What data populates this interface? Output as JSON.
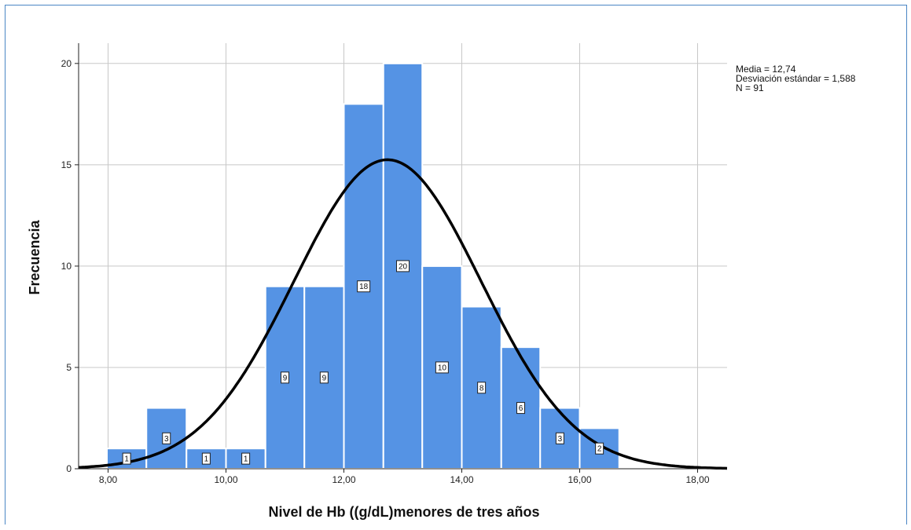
{
  "chart_data": {
    "type": "bar",
    "title": "",
    "xlabel": "Nivel de Hb ((g/dL)menores de  tres años",
    "ylabel": "Frecuencia",
    "xlim": [
      7.5,
      18.5
    ],
    "ylim": [
      0,
      21
    ],
    "x_ticks": [
      8,
      10,
      12,
      14,
      16,
      18
    ],
    "x_tick_labels": [
      "8,00",
      "10,00",
      "12,00",
      "14,00",
      "16,00",
      "18,00"
    ],
    "y_ticks": [
      0,
      5,
      10,
      15,
      20
    ],
    "y_tick_labels": [
      "0",
      "5",
      "10",
      "15",
      "20"
    ],
    "grid": true,
    "bar_color": "#5593e4",
    "bins": [
      {
        "x0": 7.98,
        "x1": 8.65,
        "value": 1,
        "label": "1"
      },
      {
        "x0": 8.65,
        "x1": 9.33,
        "value": 3,
        "label": "3"
      },
      {
        "x0": 9.33,
        "x1": 10.0,
        "value": 1,
        "label": "1"
      },
      {
        "x0": 10.0,
        "x1": 10.67,
        "value": 1,
        "label": "1"
      },
      {
        "x0": 10.67,
        "x1": 11.33,
        "value": 9,
        "label": "9"
      },
      {
        "x0": 11.33,
        "x1": 12.0,
        "value": 9,
        "label": "9"
      },
      {
        "x0": 12.0,
        "x1": 12.67,
        "value": 18,
        "label": "18"
      },
      {
        "x0": 12.67,
        "x1": 13.33,
        "value": 20,
        "label": "20"
      },
      {
        "x0": 13.33,
        "x1": 14.0,
        "value": 10,
        "label": "10"
      },
      {
        "x0": 14.0,
        "x1": 14.67,
        "value": 8,
        "label": "8"
      },
      {
        "x0": 14.67,
        "x1": 15.33,
        "value": 6,
        "label": "6"
      },
      {
        "x0": 15.33,
        "x1": 16.0,
        "value": 3,
        "label": "3"
      },
      {
        "x0": 16.0,
        "x1": 16.67,
        "value": 2,
        "label": "2"
      }
    ],
    "normal_curve": {
      "mean": 12.74,
      "sd": 1.588,
      "n": 91,
      "bin_width": 0.667,
      "color": "#000000"
    },
    "stats": [
      "Media = 12,74",
      "Desviación estándar = 1,588",
      "N = 91"
    ]
  }
}
